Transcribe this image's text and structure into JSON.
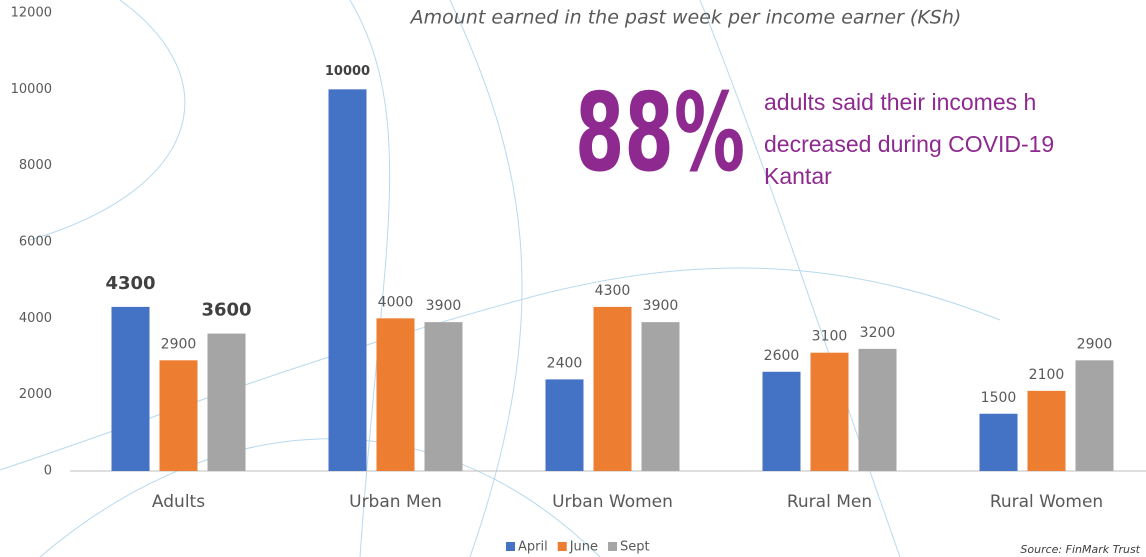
{
  "chart_data": {
    "type": "bar",
    "title": "Amount earned in the past week per income earner (KSh)",
    "categories": [
      "Adults",
      "Urban Men",
      "Urban Women",
      "Rural Men",
      "Rural Women"
    ],
    "series": [
      {
        "name": "April",
        "color": "#4472c4",
        "values": [
          4300,
          10000,
          2400,
          2600,
          1500
        ]
      },
      {
        "name": "June",
        "color": "#ed7d31",
        "values": [
          2900,
          4000,
          4300,
          3100,
          2100
        ]
      },
      {
        "name": "Sept",
        "color": "#a5a5a5",
        "values": [
          3600,
          3900,
          3900,
          3200,
          2900
        ]
      }
    ],
    "ylim": [
      0,
      12000
    ],
    "yticks": [
      0,
      2000,
      4000,
      6000,
      8000,
      10000,
      12000
    ],
    "grid": false,
    "legend": "bottom",
    "annotations": {
      "highlight": "88%",
      "lines": [
        "adults said their incomes h",
        "decreased during COVID-19",
        "Kantar"
      ]
    },
    "source": "Source: FinMark Trust"
  }
}
